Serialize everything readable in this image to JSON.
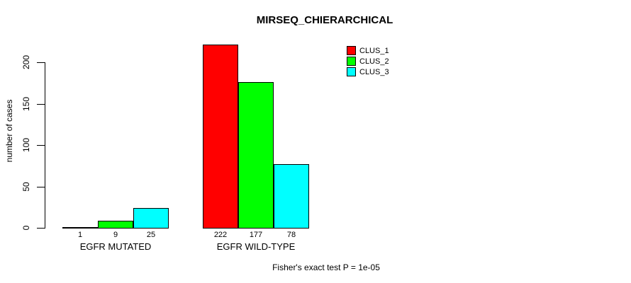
{
  "chart_data": {
    "type": "bar",
    "title": "MIRSEQ_CHIERARCHICAL",
    "ylabel": "number of cases",
    "xlabel": "",
    "caption": "Fisher's exact test P = 1e-05",
    "categories": [
      "EGFR MUTATED",
      "EGFR WILD-TYPE"
    ],
    "series": [
      {
        "name": "CLUS_1",
        "color": "#ff0000",
        "values": [
          1,
          222
        ]
      },
      {
        "name": "CLUS_2",
        "color": "#00ff00",
        "values": [
          9,
          177
        ]
      },
      {
        "name": "CLUS_3",
        "color": "#00ffff",
        "values": [
          25,
          78
        ]
      }
    ],
    "yticks": [
      0,
      50,
      100,
      150,
      200
    ],
    "ylim": [
      0,
      230
    ],
    "grid": false,
    "legend_position": "top-right",
    "bar_outline_color": "#000000",
    "background_color": "#ffffff"
  }
}
